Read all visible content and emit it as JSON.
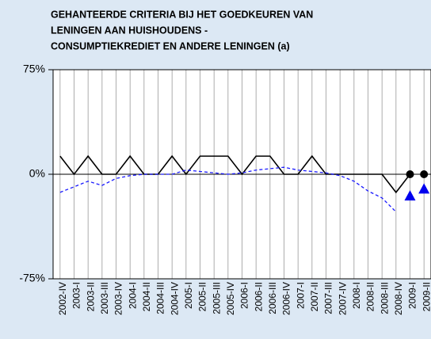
{
  "chart_data": {
    "type": "line",
    "title": [
      "GEHANTEERDE CRITERIA BIJ HET GOEDKEUREN VAN",
      "LENINGEN AAN HUISHOUDENS -",
      "CONSUMPTIEKREDIET EN ANDERE LENINGEN (a)"
    ],
    "categories": [
      "2002-IV",
      "2003-I",
      "2003-II",
      "2003-III",
      "2003-IV",
      "2004-I",
      "2004-II",
      "2004-III",
      "2004-IV",
      "2005-I",
      "2005-II",
      "2005-III",
      "2005-IV",
      "2006-I",
      "2006-II",
      "2006-III",
      "2006-IV",
      "2007-I",
      "2007-II",
      "2007-III",
      "2007-IV",
      "2008-I",
      "2008-II",
      "2008-III",
      "2008-IV",
      "2009-I",
      "2009-II"
    ],
    "series": [
      {
        "color": "#000000",
        "style": "solid",
        "values": [
          13,
          0,
          13,
          0,
          0,
          13,
          0,
          0,
          13,
          0,
          13,
          13,
          13,
          0,
          13,
          13,
          0,
          0,
          13,
          0,
          0,
          0,
          0,
          0,
          -13,
          0,
          null
        ]
      },
      {
        "color": "#1a1aff",
        "style": "dashed",
        "values": [
          -13,
          -9,
          -5,
          -8,
          -3,
          -1,
          0,
          0,
          0,
          3,
          2,
          1,
          0,
          1,
          3,
          4,
          5,
          3,
          2,
          1,
          -1,
          -5,
          -12,
          -17,
          -27,
          null,
          null
        ]
      },
      {
        "color": "#000000",
        "marker": "circle",
        "values": [
          null,
          null,
          null,
          null,
          null,
          null,
          null,
          null,
          null,
          null,
          null,
          null,
          null,
          null,
          null,
          null,
          null,
          null,
          null,
          null,
          null,
          null,
          null,
          null,
          null,
          0,
          0
        ]
      },
      {
        "color": "#0000ee",
        "marker": "triangle",
        "values": [
          null,
          null,
          null,
          null,
          null,
          null,
          null,
          null,
          null,
          null,
          null,
          null,
          null,
          null,
          null,
          null,
          null,
          null,
          null,
          null,
          null,
          null,
          null,
          null,
          null,
          -16,
          -11
        ]
      }
    ],
    "ylim": [
      -75,
      75
    ],
    "yticks": [
      {
        "value": -75,
        "label": "-75%"
      },
      {
        "value": 0,
        "label": "0%"
      },
      {
        "value": 75,
        "label": "75%"
      }
    ]
  }
}
